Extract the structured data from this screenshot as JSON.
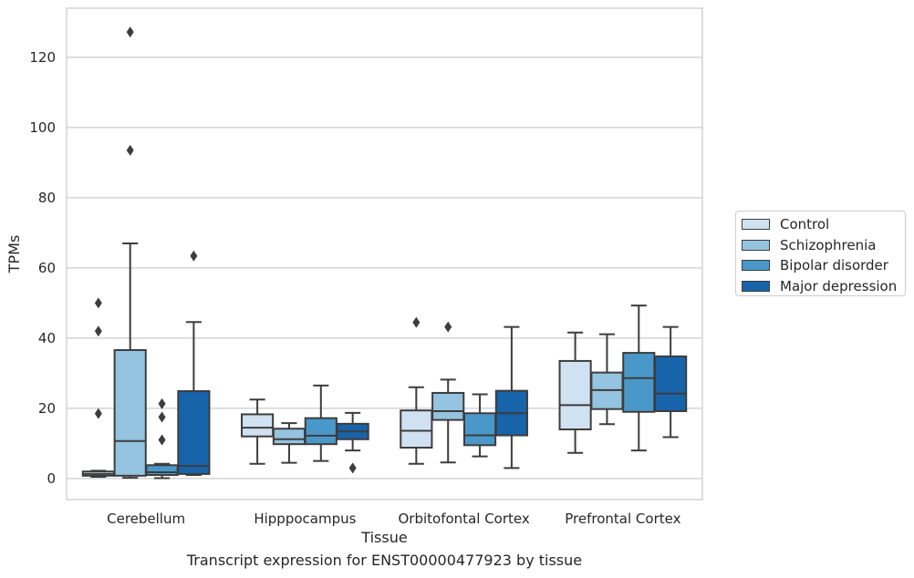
{
  "chart_data": {
    "type": "box",
    "title": "",
    "caption": "Transcript expression for ENST00000477923 by tissue",
    "xlabel": "Tissue",
    "ylabel": "TPMs",
    "ylim": [
      -6,
      134
    ],
    "yticks": [
      0,
      20,
      40,
      60,
      80,
      100,
      120
    ],
    "grid": "horizontal",
    "legend_position": "right",
    "categories": [
      "Cerebellum",
      "Hipppocampus",
      "Orbitofontal Cortex",
      "Prefrontal Cortex"
    ],
    "series": [
      {
        "name": "Control",
        "color": "#d0e1f2",
        "boxes": [
          {
            "whisker_low": 0.5,
            "q1": 0.8,
            "median": 1.3,
            "q3": 2.0,
            "whisker_high": 2.2,
            "outliers": [
              18.5,
              42,
              50
            ]
          },
          {
            "whisker_low": 4.2,
            "q1": 12,
            "median": 14.5,
            "q3": 18.3,
            "whisker_high": 22.5,
            "outliers": []
          },
          {
            "whisker_low": 4.2,
            "q1": 8.8,
            "median": 13.6,
            "q3": 19.4,
            "whisker_high": 26,
            "outliers": [
              44.5
            ]
          },
          {
            "whisker_low": 7.3,
            "q1": 14,
            "median": 20.9,
            "q3": 33.5,
            "whisker_high": 41.6,
            "outliers": []
          }
        ]
      },
      {
        "name": "Schizophrenia",
        "color": "#94c4df",
        "boxes": [
          {
            "whisker_low": 0.2,
            "q1": 0.8,
            "median": 10.7,
            "q3": 36.6,
            "whisker_high": 67,
            "outliers": [
              93.5,
              127.2
            ]
          },
          {
            "whisker_low": 4.5,
            "q1": 9.8,
            "median": 11.2,
            "q3": 14.2,
            "whisker_high": 15.8,
            "outliers": []
          },
          {
            "whisker_low": 4.6,
            "q1": 16.7,
            "median": 19.2,
            "q3": 24.4,
            "whisker_high": 28.2,
            "outliers": [
              43.2
            ]
          },
          {
            "whisker_low": 15.5,
            "q1": 19.8,
            "median": 25.2,
            "q3": 30.2,
            "whisker_high": 41.1,
            "outliers": []
          }
        ]
      },
      {
        "name": "Bipolar disorder",
        "color": "#4a98c9",
        "boxes": [
          {
            "whisker_low": 0.1,
            "q1": 1.0,
            "median": 1.8,
            "q3": 3.8,
            "whisker_high": 4.2,
            "outliers": [
              11,
              17.5,
              21.3
            ]
          },
          {
            "whisker_low": 5.0,
            "q1": 9.8,
            "median": 12.2,
            "q3": 17.2,
            "whisker_high": 26.5,
            "outliers": []
          },
          {
            "whisker_low": 6.3,
            "q1": 9.5,
            "median": 12.3,
            "q3": 18.6,
            "whisker_high": 24,
            "outliers": []
          },
          {
            "whisker_low": 8.0,
            "q1": 19.0,
            "median": 28.6,
            "q3": 35.8,
            "whisker_high": 49.3,
            "outliers": []
          }
        ]
      },
      {
        "name": "Major depression",
        "color": "#1764ab",
        "boxes": [
          {
            "whisker_low": 1.0,
            "q1": 1.3,
            "median": 3.6,
            "q3": 24.9,
            "whisker_high": 44.6,
            "outliers": [
              63.4
            ]
          },
          {
            "whisker_low": 8.0,
            "q1": 11.2,
            "median": 13.4,
            "q3": 15.6,
            "whisker_high": 18.7,
            "outliers": [
              3.0
            ]
          },
          {
            "whisker_low": 3.0,
            "q1": 12.3,
            "median": 18.6,
            "q3": 25.0,
            "whisker_high": 43.2,
            "outliers": []
          },
          {
            "whisker_low": 11.8,
            "q1": 19.2,
            "median": 24.2,
            "q3": 34.8,
            "whisker_high": 43.2,
            "outliers": []
          }
        ]
      }
    ]
  }
}
